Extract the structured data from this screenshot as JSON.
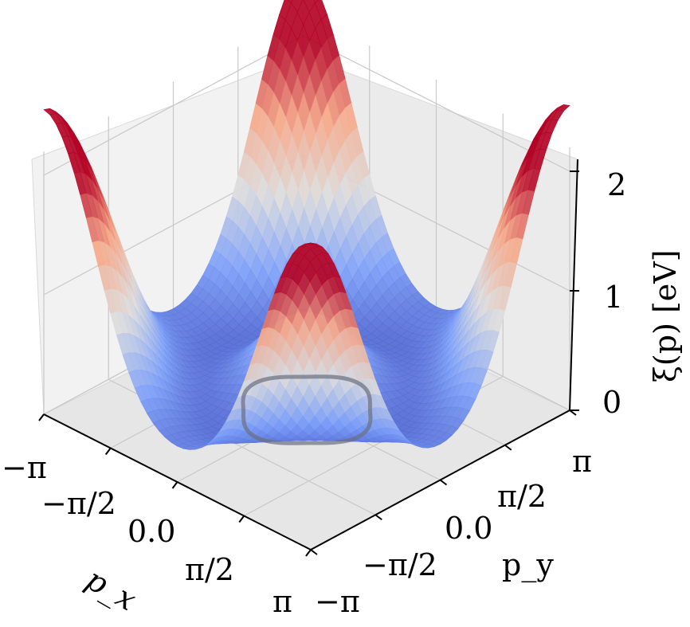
{
  "chart_data": {
    "type": "surface3d",
    "colormap": "coolwarm",
    "x_axis": {
      "label": "p_x",
      "ticks": [
        "−π",
        "−π/2",
        "0.0",
        "π/2",
        "π"
      ],
      "range": [
        -3.1416,
        3.1416
      ]
    },
    "y_axis": {
      "label": "p_y",
      "ticks": [
        "−π",
        "−π/2",
        "0.0",
        "π/2",
        "π"
      ],
      "range": [
        -3.1416,
        3.1416
      ]
    },
    "z_axis": {
      "label": "ξ(p) [eV]",
      "ticks": [
        "0",
        "1",
        "2"
      ],
      "range": [
        0,
        2.2
      ]
    },
    "grid": true,
    "surface_samples": {
      "description_units": "eV",
      "center_peak": 1.4,
      "corner_peaks": 2.1,
      "edge_midpoint": 1.55,
      "minimum_ring": 0.0
    },
    "contour": {
      "level": 0.0,
      "shape": "rounded square ring around center"
    }
  }
}
